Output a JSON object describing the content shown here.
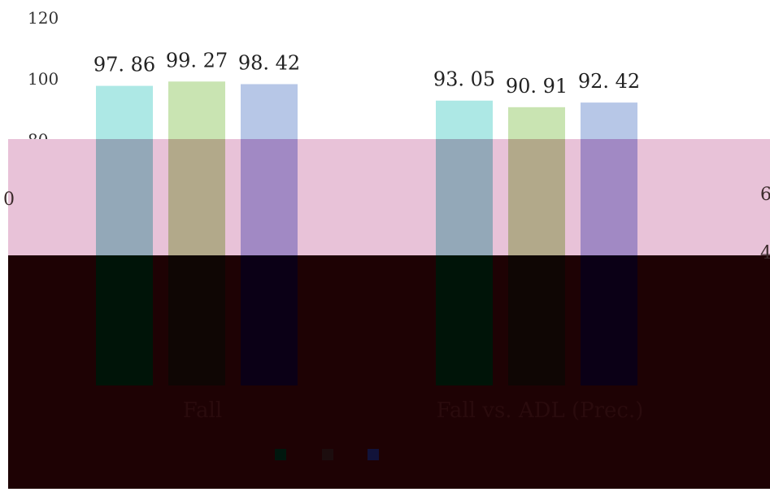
{
  "chart_data": {
    "type": "bar",
    "categories": [
      "Fall",
      "Fall vs. ADL (Prec.)"
    ],
    "series": [
      {
        "name": "",
        "values": [
          97.86,
          93.05
        ],
        "color": "#ade8e5"
      },
      {
        "name": "",
        "values": [
          99.27,
          90.91
        ],
        "color": "#c9e4b2"
      },
      {
        "name": "",
        "values": [
          98.42,
          92.42
        ],
        "color": "#b7c7e7"
      }
    ],
    "data_labels": [
      [
        "97. 86",
        "93. 05"
      ],
      [
        "99. 27",
        "90. 91"
      ],
      [
        "98. 42",
        "92. 42"
      ]
    ],
    "yticks": [
      "120",
      "100",
      "80"
    ],
    "ylim": [
      0,
      120
    ],
    "grid": false,
    "legend_position": "bottom",
    "overlay": {
      "band_color": "#e8c2d8",
      "dark_color": "#1e0204",
      "bar_shades_mid": [
        "#93a8b8",
        "#b2a98a",
        "#a189c4"
      ],
      "bar_shades_dark": [
        "#001408",
        "#0f0604",
        "#0b0016"
      ],
      "side_tick_left": "0",
      "side_tick_right_upper": "6",
      "side_tick_right_lower": "4",
      "legend_swatch_colors": [
        "#00170e",
        "#1c0d0e",
        "#12133a"
      ]
    }
  }
}
